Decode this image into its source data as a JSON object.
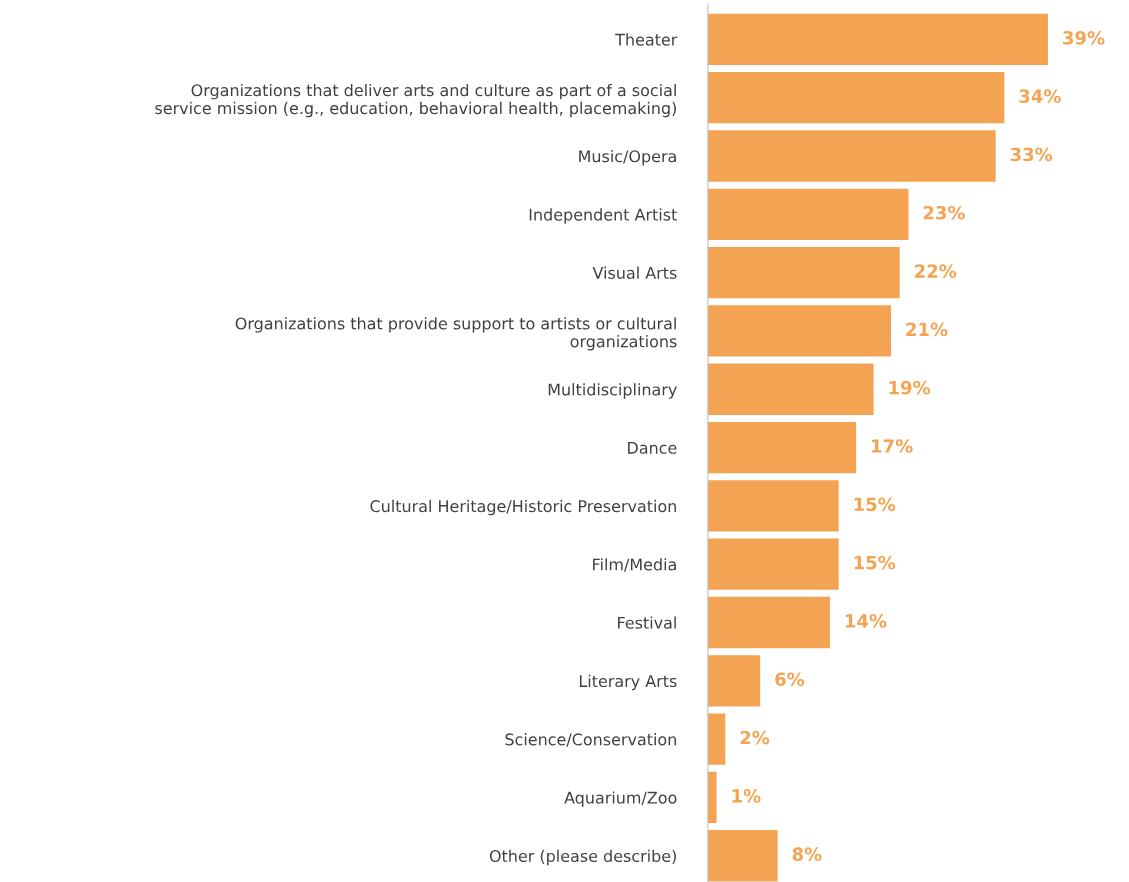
{
  "chart_data": {
    "type": "bar",
    "orientation": "horizontal",
    "categories": [
      "Theater",
      "Organizations that deliver arts and culture as part of a social\nservice mission (e.g., education, behavioral health, placemaking)",
      "Music/Opera",
      "Independent Artist",
      "Visual Arts",
      "Organizations that provide support to artists or cultural\norganizations",
      "Multidisciplinary",
      "Dance",
      "Cultural Heritage/Historic Preservation",
      "Film/Media",
      "Festival",
      "Literary Arts",
      "Science/Conservation",
      "Aquarium/Zoo",
      "Other (please describe)"
    ],
    "values": [
      39,
      34,
      33,
      23,
      22,
      21,
      19,
      17,
      15,
      15,
      14,
      6,
      2,
      1,
      8
    ],
    "value_labels": [
      "39%",
      "34%",
      "33%",
      "23%",
      "22%",
      "21%",
      "19%",
      "17%",
      "15%",
      "15%",
      "14%",
      "6%",
      "2%",
      "1%",
      "8%"
    ],
    "color": "#f4a352",
    "grid": false,
    "legend": false
  }
}
